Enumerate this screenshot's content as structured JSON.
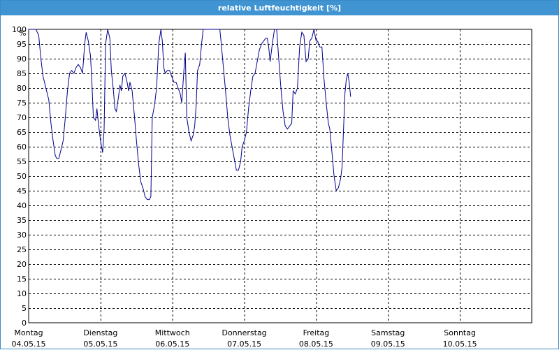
{
  "window": {
    "title": "relative Luftfeuchtigkeit [%]",
    "title_bar_color": "#3f94d1"
  },
  "chart_data": {
    "type": "line",
    "title": "relative Luftfeuchtigkeit [%]",
    "ylabel": "%",
    "xlabel": "",
    "ylim": [
      0,
      100
    ],
    "yticks": [
      0,
      5,
      10,
      15,
      20,
      25,
      30,
      35,
      40,
      45,
      50,
      55,
      60,
      65,
      70,
      75,
      80,
      85,
      90,
      95,
      100
    ],
    "xlim_days": [
      0,
      7
    ],
    "grid": true,
    "line_color": "#00008b",
    "x_tick_labels": [
      {
        "day": "Montag",
        "date": "04.05.15"
      },
      {
        "day": "Dienstag",
        "date": "05.05.15"
      },
      {
        "day": "Mittwoch",
        "date": "06.05.15"
      },
      {
        "day": "Donnerstag",
        "date": "07.05.15"
      },
      {
        "day": "Freitag",
        "date": "08.05.15"
      },
      {
        "day": "Samstag",
        "date": "09.05.15"
      },
      {
        "day": "Sonntag",
        "date": "10.05.15"
      }
    ],
    "series": [
      {
        "points": [
          [
            0.0,
            100
          ],
          [
            0.05,
            100
          ],
          [
            0.1,
            100
          ],
          [
            0.14,
            98
          ],
          [
            0.17,
            90
          ],
          [
            0.2,
            84
          ],
          [
            0.25,
            79
          ],
          [
            0.28,
            76
          ],
          [
            0.31,
            68
          ],
          [
            0.34,
            62
          ],
          [
            0.37,
            57
          ],
          [
            0.39,
            56
          ],
          [
            0.42,
            56
          ],
          [
            0.45,
            59
          ],
          [
            0.48,
            62
          ],
          [
            0.51,
            70
          ],
          [
            0.54,
            79
          ],
          [
            0.57,
            85
          ],
          [
            0.6,
            86
          ],
          [
            0.63,
            85
          ],
          [
            0.66,
            87
          ],
          [
            0.69,
            88
          ],
          [
            0.72,
            87
          ],
          [
            0.75,
            85
          ],
          [
            0.78,
            95
          ],
          [
            0.8,
            99
          ],
          [
            0.83,
            96
          ],
          [
            0.86,
            91
          ],
          [
            0.88,
            82
          ],
          [
            0.9,
            70
          ],
          [
            0.93,
            69
          ],
          [
            0.95,
            73
          ],
          [
            0.97,
            68
          ],
          [
            1.0,
            62
          ],
          [
            1.03,
            58
          ],
          [
            1.05,
            66
          ],
          [
            1.07,
            95
          ],
          [
            1.1,
            100
          ],
          [
            1.13,
            97
          ],
          [
            1.15,
            86
          ],
          [
            1.18,
            79
          ],
          [
            1.2,
            73
          ],
          [
            1.22,
            72
          ],
          [
            1.25,
            77
          ],
          [
            1.27,
            81
          ],
          [
            1.29,
            79
          ],
          [
            1.31,
            84
          ],
          [
            1.34,
            85
          ],
          [
            1.37,
            82
          ],
          [
            1.39,
            79
          ],
          [
            1.41,
            82
          ],
          [
            1.44,
            79
          ],
          [
            1.47,
            71
          ],
          [
            1.5,
            62
          ],
          [
            1.53,
            54
          ],
          [
            1.56,
            48
          ],
          [
            1.59,
            46
          ],
          [
            1.62,
            43
          ],
          [
            1.65,
            42
          ],
          [
            1.68,
            42
          ],
          [
            1.7,
            43
          ],
          [
            1.72,
            70
          ],
          [
            1.75,
            74
          ],
          [
            1.78,
            80
          ],
          [
            1.81,
            95
          ],
          [
            1.84,
            100
          ],
          [
            1.86,
            96
          ],
          [
            1.88,
            87
          ],
          [
            1.9,
            85
          ],
          [
            1.93,
            86
          ],
          [
            1.96,
            86
          ],
          [
            1.99,
            84
          ],
          [
            2.02,
            82
          ],
          [
            2.05,
            82
          ],
          [
            2.08,
            80
          ],
          [
            2.11,
            78
          ],
          [
            2.13,
            75
          ],
          [
            2.16,
            86
          ],
          [
            2.18,
            92
          ],
          [
            2.2,
            70
          ],
          [
            2.23,
            65
          ],
          [
            2.26,
            62
          ],
          [
            2.29,
            64
          ],
          [
            2.31,
            67
          ],
          [
            2.33,
            74
          ],
          [
            2.35,
            86
          ],
          [
            2.38,
            88
          ],
          [
            2.41,
            96
          ],
          [
            2.43,
            100
          ],
          [
            2.47,
            100
          ],
          [
            2.52,
            100
          ],
          [
            2.58,
            100
          ],
          [
            2.62,
            100
          ],
          [
            2.66,
            100
          ],
          [
            2.68,
            95
          ],
          [
            2.71,
            87
          ],
          [
            2.74,
            79
          ],
          [
            2.77,
            70
          ],
          [
            2.8,
            64
          ],
          [
            2.83,
            60
          ],
          [
            2.86,
            56
          ],
          [
            2.89,
            52
          ],
          [
            2.92,
            52
          ],
          [
            2.95,
            55
          ],
          [
            2.97,
            60
          ],
          [
            3.0,
            62
          ],
          [
            3.03,
            65
          ],
          [
            3.06,
            73
          ],
          [
            3.09,
            79
          ],
          [
            3.12,
            84
          ],
          [
            3.15,
            85
          ],
          [
            3.18,
            89
          ],
          [
            3.21,
            93
          ],
          [
            3.24,
            95
          ],
          [
            3.27,
            96
          ],
          [
            3.3,
            97
          ],
          [
            3.32,
            97
          ],
          [
            3.34,
            94
          ],
          [
            3.36,
            89
          ],
          [
            3.39,
            95
          ],
          [
            3.42,
            100
          ],
          [
            3.45,
            100
          ],
          [
            3.48,
            90
          ],
          [
            3.51,
            80
          ],
          [
            3.54,
            72
          ],
          [
            3.57,
            67
          ],
          [
            3.6,
            66
          ],
          [
            3.63,
            67
          ],
          [
            3.66,
            68
          ],
          [
            3.68,
            79
          ],
          [
            3.71,
            78
          ],
          [
            3.74,
            80
          ],
          [
            3.77,
            94
          ],
          [
            3.8,
            99
          ],
          [
            3.83,
            98
          ],
          [
            3.86,
            89
          ],
          [
            3.89,
            90
          ],
          [
            3.91,
            96
          ],
          [
            3.94,
            97
          ],
          [
            3.97,
            100
          ],
          [
            4.0,
            96
          ],
          [
            4.02,
            96
          ],
          [
            4.05,
            94
          ],
          [
            4.08,
            94
          ],
          [
            4.11,
            83
          ],
          [
            4.14,
            75
          ],
          [
            4.17,
            68
          ],
          [
            4.19,
            66
          ],
          [
            4.22,
            58
          ],
          [
            4.25,
            50
          ],
          [
            4.28,
            45
          ],
          [
            4.31,
            46
          ],
          [
            4.34,
            49
          ],
          [
            4.36,
            53
          ],
          [
            4.38,
            65
          ],
          [
            4.4,
            78
          ],
          [
            4.42,
            83
          ],
          [
            4.44,
            85
          ],
          [
            4.46,
            82
          ],
          [
            4.48,
            77
          ]
        ]
      }
    ]
  }
}
